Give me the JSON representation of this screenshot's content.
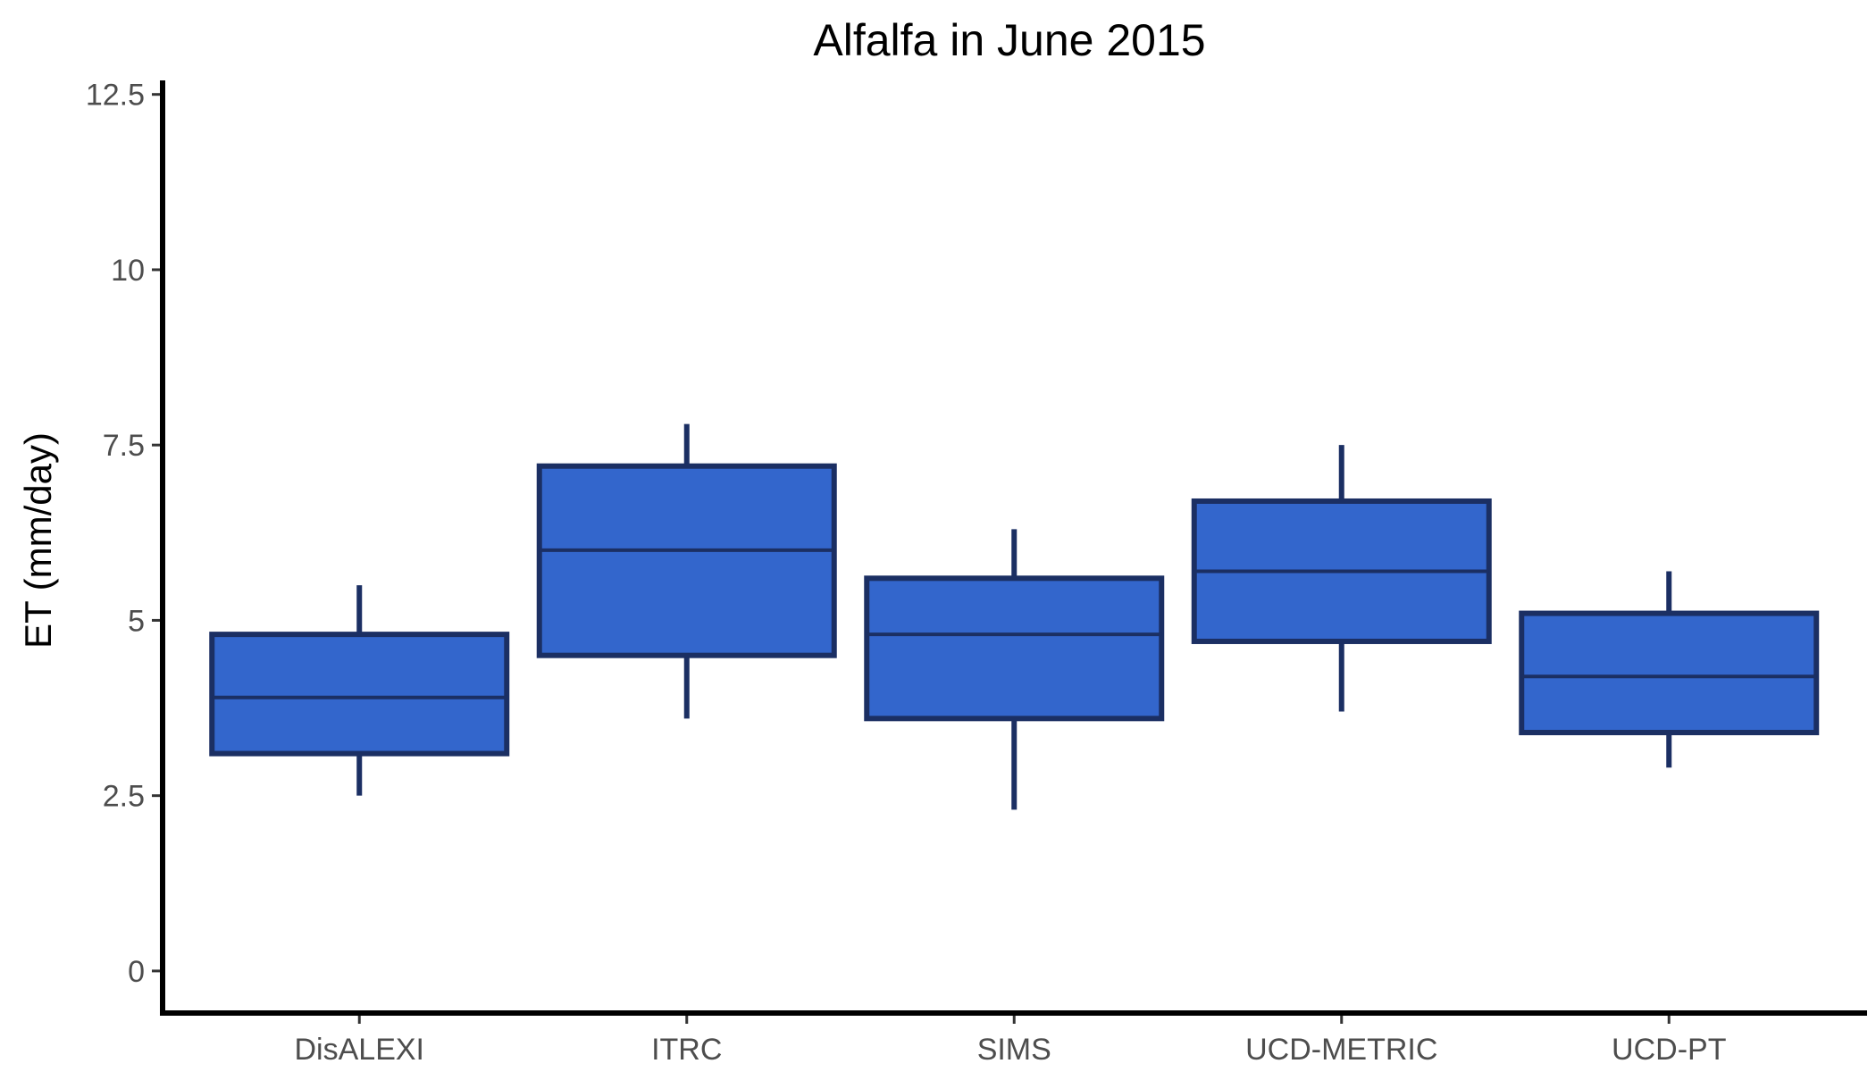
{
  "chart_data": {
    "type": "box",
    "title": "Alfalfa in June 2015",
    "xlabel": "",
    "ylabel": "ET (mm/day)",
    "ylim": [
      -0.6,
      12.7
    ],
    "yticks": [
      0,
      2.5,
      5,
      7.5,
      10,
      12.5
    ],
    "ytick_labels": [
      "0",
      "2.5",
      "5",
      "7.5",
      "10",
      "12.5"
    ],
    "grid": false,
    "categories": [
      "DisALEXI",
      "ITRC",
      "SIMS",
      "UCD-METRIC",
      "UCD-PT"
    ],
    "boxes": [
      {
        "category": "DisALEXI",
        "whisker_low": 2.5,
        "q1": 3.1,
        "median": 3.9,
        "q3": 4.8,
        "whisker_high": 5.5
      },
      {
        "category": "ITRC",
        "whisker_low": 3.6,
        "q1": 4.5,
        "median": 6.0,
        "q3": 7.2,
        "whisker_high": 7.8
      },
      {
        "category": "SIMS",
        "whisker_low": 2.3,
        "q1": 3.6,
        "median": 4.8,
        "q3": 5.6,
        "whisker_high": 6.3
      },
      {
        "category": "UCD-METRIC",
        "whisker_low": 3.7,
        "q1": 4.7,
        "median": 5.7,
        "q3": 6.7,
        "whisker_high": 7.5
      },
      {
        "category": "UCD-PT",
        "whisker_low": 2.9,
        "q1": 3.4,
        "median": 4.2,
        "q3": 5.1,
        "whisker_high": 5.7
      }
    ],
    "colors": {
      "box_fill": "#3366cc",
      "box_outline": "#1b2f63",
      "axis": "#000000",
      "tick_text": "#4d4d4d"
    }
  }
}
